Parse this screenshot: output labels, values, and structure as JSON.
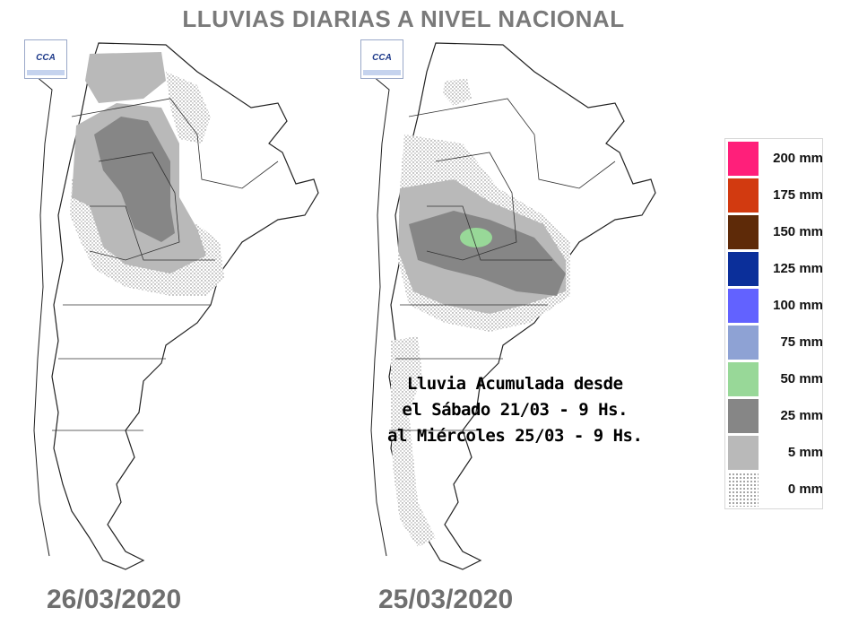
{
  "title": "LLUVIAS DIARIAS A NIVEL NACIONAL",
  "maps": [
    {
      "date": "26/03/2020",
      "logo": "CCA"
    },
    {
      "date": "25/03/2020",
      "logo": "CCA"
    }
  ],
  "annotation": {
    "line1": "Lluvia Acumulada desde",
    "line2": "el Sábado 21/03 - 9 Hs.",
    "line3": "al Miércoles 25/03 - 9 Hs."
  },
  "legend": [
    {
      "label": "200 mm",
      "color": "#ff1f7a"
    },
    {
      "label": "175 mm",
      "color": "#d23a10"
    },
    {
      "label": "150 mm",
      "color": "#5e2a08"
    },
    {
      "label": "125 mm",
      "color": "#0b2f9a"
    },
    {
      "label": "100 mm",
      "color": "#6262ff"
    },
    {
      "label": "75 mm",
      "color": "#8ea2d4"
    },
    {
      "label": "50 mm",
      "color": "#98d898"
    },
    {
      "label": "25 mm",
      "color": "#868686"
    },
    {
      "label": "5 mm",
      "color": "#b9b9b9"
    },
    {
      "label": "0 mm",
      "color": "dotted"
    }
  ]
}
